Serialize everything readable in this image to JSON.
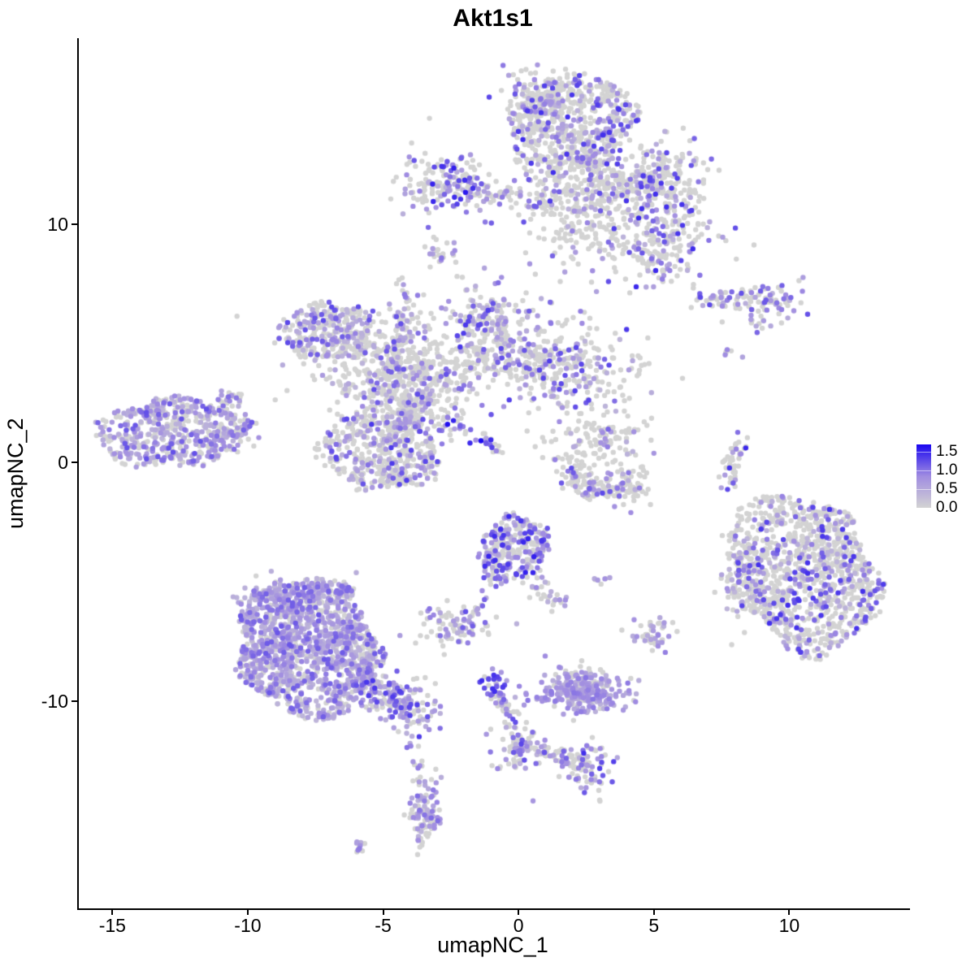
{
  "title": "Akt1s1",
  "chart_data": {
    "type": "scatter",
    "title": "Akt1s1",
    "xlabel": "umapNC_1",
    "ylabel": "umapNC_2",
    "xlim": [
      -16.3,
      14.4
    ],
    "ylim": [
      -18.7,
      17.8
    ],
    "x_ticks": [
      {
        "label": "-15",
        "value": -15
      },
      {
        "label": "-10",
        "value": -10
      },
      {
        "label": "-5",
        "value": -5
      },
      {
        "label": "0",
        "value": 0
      },
      {
        "label": "5",
        "value": 5
      },
      {
        "label": "10",
        "value": 10
      }
    ],
    "y_ticks": [
      {
        "label": "-10",
        "value": -10
      },
      {
        "label": "0",
        "value": 0
      },
      {
        "label": "10",
        "value": 10
      }
    ],
    "grid": false,
    "point_radius": 3.2,
    "color_scale": {
      "low": "#d3d3d3",
      "mid": "#a08ce1",
      "high": "#1a07f0",
      "vmax": 1.7
    },
    "legend": {
      "position": "right",
      "ticks": [
        {
          "label": "1.5",
          "value": 1.5
        },
        {
          "label": "1.0",
          "value": 1.0
        },
        {
          "label": "0.5",
          "value": 0.5
        },
        {
          "label": "0.0",
          "value": 0.0
        }
      ]
    },
    "clusters": [
      {
        "cluster": "top-center-main",
        "shape": "disc",
        "x": 1.9,
        "y": 14.15,
        "sx": 2.3,
        "sy": 2.0,
        "n": 600,
        "frac": 0.3,
        "vmin": 0.4,
        "vmax": 1.5,
        "vexp": 1.6
      },
      {
        "cluster": "top-left-bump",
        "shape": "blob",
        "x": 0.55,
        "y": 15.4,
        "sx": 0.65,
        "sy": 0.55,
        "n": 110,
        "frac": 0.3,
        "vmin": 0.4,
        "vmax": 1.4,
        "vexp": 1.6
      },
      {
        "cluster": "top-neck",
        "shape": "blob",
        "x": 1.85,
        "y": 10.8,
        "sx": 0.85,
        "sy": 1.15,
        "n": 230,
        "frac": 0.22,
        "vmin": 0.4,
        "vmax": 1.4,
        "vexp": 1.6
      },
      {
        "cluster": "top-right-arm",
        "shape": "strand",
        "pts": [
          [
            2.3,
            11.95
          ],
          [
            4.0,
            11.7
          ],
          [
            6.05,
            11.35
          ]
        ],
        "w": 0.5,
        "n": 210,
        "frac": 0.28,
        "vmin": 0.4,
        "vmax": 1.5,
        "vexp": 1.6
      },
      {
        "cluster": "top-right-wedge",
        "shape": "blob",
        "x": 5.3,
        "y": 12.55,
        "sx": 0.8,
        "sy": 0.65,
        "n": 100,
        "frac": 0.3,
        "vmin": 0.4,
        "vmax": 1.4,
        "vexp": 1.6
      },
      {
        "cluster": "top-lower-lobe",
        "shape": "blob",
        "x": 4.85,
        "y": 9.5,
        "sx": 1.15,
        "sy": 1.0,
        "n": 250,
        "frac": 0.3,
        "vmin": 0.4,
        "vmax": 1.5,
        "vexp": 1.6
      },
      {
        "cluster": "top-lobe-tail",
        "shape": "strand",
        "pts": [
          [
            4.9,
            8.7
          ],
          [
            5.1,
            7.95
          ]
        ],
        "w": 0.28,
        "n": 28,
        "frac": 0.3,
        "vmin": 0.4,
        "vmax": 1.2,
        "vexp": 1.6
      },
      {
        "cluster": "left-arm",
        "shape": "blob",
        "x": -2.8,
        "y": 11.6,
        "sx": 0.85,
        "sy": 0.7,
        "n": 175,
        "frac": 0.45,
        "vmin": 0.4,
        "vmax": 1.6,
        "vexp": 1.2
      },
      {
        "cluster": "left-arm-bridge",
        "shape": "strand",
        "pts": [
          [
            -1.5,
            11.4
          ],
          [
            0.3,
            11.15
          ],
          [
            1.15,
            10.95
          ]
        ],
        "w": 0.22,
        "n": 55,
        "frac": 0.5,
        "vmin": 0.4,
        "vmax": 1.4,
        "vexp": 1.4
      },
      {
        "cluster": "tiny-upper",
        "shape": "blob",
        "x": -2.95,
        "y": 8.75,
        "sx": 0.38,
        "sy": 0.35,
        "n": 22,
        "frac": 0.35,
        "vmin": 0.5,
        "vmax": 1.1,
        "vexp": 1.4
      },
      {
        "cluster": "right-streak-a",
        "shape": "strand",
        "pts": [
          [
            6.5,
            6.92
          ],
          [
            8.3,
            6.78
          ]
        ],
        "w": 0.2,
        "n": 42,
        "frac": 0.45,
        "vmin": 0.4,
        "vmax": 1.3,
        "vexp": 1.5
      },
      {
        "cluster": "right-streak-b",
        "shape": "blob",
        "x": 9.2,
        "y": 6.8,
        "sx": 0.75,
        "sy": 0.4,
        "n": 66,
        "frac": 0.4,
        "vmin": 0.4,
        "vmax": 1.3,
        "vexp": 1.5
      },
      {
        "cluster": "right-streak-c",
        "shape": "strand",
        "pts": [
          [
            8.5,
            6.05
          ],
          [
            9.12,
            5.6
          ]
        ],
        "w": 0.13,
        "n": 10,
        "frac": 0.5,
        "vmin": 0.5,
        "vmax": 1.2,
        "vexp": 1.4
      },
      {
        "cluster": "right-trio",
        "shape": "blob",
        "x": 7.75,
        "y": 4.72,
        "sx": 0.2,
        "sy": 0.17,
        "n": 6,
        "frac": 0.3,
        "vmin": 0.5,
        "vmax": 1.0,
        "vexp": 1.5
      },
      {
        "cluster": "mid-upper-left",
        "shape": "disc",
        "x": -7.1,
        "y": 5.5,
        "sx": 1.5,
        "sy": 1.4,
        "n": 280,
        "frac": 0.38,
        "vmin": 0.35,
        "vmax": 1.3,
        "vexp": 1.6
      },
      {
        "cluster": "mid-bridge",
        "shape": "blob",
        "x": -5.1,
        "y": 4.2,
        "sx": 1.2,
        "sy": 1.0,
        "n": 270,
        "frac": 0.22,
        "vmin": 0.35,
        "vmax": 1.2,
        "vexp": 1.7
      },
      {
        "cluster": "mid-vertical-arm",
        "shape": "strand",
        "pts": [
          [
            -4.25,
            6.6
          ],
          [
            -4.4,
            5.3
          ],
          [
            -4.6,
            4.4
          ]
        ],
        "w": 0.24,
        "n": 60,
        "frac": 0.35,
        "vmin": 0.4,
        "vmax": 1.3,
        "vexp": 1.6
      },
      {
        "cluster": "mid-central",
        "shape": "blob",
        "x": -4.0,
        "y": 3.1,
        "sx": 1.0,
        "sy": 1.0,
        "n": 240,
        "frac": 0.28,
        "vmin": 0.35,
        "vmax": 1.3,
        "vexp": 1.6
      },
      {
        "cluster": "mid-dense-top",
        "shape": "blob",
        "x": -1.2,
        "y": 6.1,
        "sx": 0.8,
        "sy": 0.72,
        "n": 155,
        "frac": 0.5,
        "vmin": 0.4,
        "vmax": 1.4,
        "vexp": 1.5
      },
      {
        "cluster": "mid-arm",
        "shape": "blob",
        "x": -1.2,
        "y": 4.3,
        "sx": 1.4,
        "sy": 0.62,
        "n": 200,
        "frac": 0.28,
        "vmin": 0.35,
        "vmax": 1.3,
        "vexp": 1.6
      },
      {
        "cluster": "mid-right-lobe",
        "shape": "blob",
        "x": 1.6,
        "y": 4.1,
        "sx": 1.3,
        "sy": 0.95,
        "n": 275,
        "frac": 0.33,
        "vmin": 0.35,
        "vmax": 1.4,
        "vexp": 1.6
      },
      {
        "cluster": "mid-lower-round",
        "shape": "disc",
        "x": -5.2,
        "y": 0.45,
        "sx": 2.0,
        "sy": 1.75,
        "n": 430,
        "frac": 0.33,
        "vmin": 0.35,
        "vmax": 1.4,
        "vexp": 1.7
      },
      {
        "cluster": "mid-connect",
        "shape": "blob",
        "x": -4.3,
        "y": 1.9,
        "sx": 0.8,
        "sy": 0.7,
        "n": 120,
        "frac": 0.3,
        "vmin": 0.35,
        "vmax": 1.2,
        "vexp": 1.7
      },
      {
        "cluster": "mid-diag-streak",
        "shape": "strand",
        "pts": [
          [
            -2.9,
            2.0
          ],
          [
            -1.7,
            1.1
          ],
          [
            -0.6,
            0.42
          ]
        ],
        "w": 0.16,
        "n": 38,
        "frac": 0.55,
        "vmin": 0.5,
        "vmax": 1.7,
        "vexp": 1.0
      },
      {
        "cluster": "stray-dot-left",
        "shape": "blob",
        "x": -10.45,
        "y": 6.1,
        "sx": 0.04,
        "sy": 0.04,
        "n": 1,
        "frac": 0,
        "vmin": 0,
        "vmax": 0,
        "vexp": 1
      },
      {
        "cluster": "mid-arm-upper-dots",
        "shape": "strand",
        "pts": [
          [
            -4.45,
            7.7
          ],
          [
            -4.25,
            6.9
          ]
        ],
        "w": 0.1,
        "n": 8,
        "frac": 0.4,
        "vmin": 0.5,
        "vmax": 1.0,
        "vexp": 1.4
      },
      {
        "cluster": "far-left",
        "shape": "disc",
        "x": -12.9,
        "y": 1.25,
        "sx": 2.55,
        "sy": 1.55,
        "n": 520,
        "frac": 0.55,
        "vmin": 0.35,
        "vmax": 1.25,
        "vexp": 1.7
      },
      {
        "cluster": "far-left-arm",
        "shape": "strand",
        "pts": [
          [
            -11.3,
            2.3
          ],
          [
            -10.35,
            2.85
          ]
        ],
        "w": 0.18,
        "n": 28,
        "frac": 0.5,
        "vmin": 0.4,
        "vmax": 1.1,
        "vexp": 1.6
      },
      {
        "cluster": "far-left-tip",
        "shape": "blob",
        "x": -10.7,
        "y": 1.05,
        "sx": 0.5,
        "sy": 0.45,
        "n": 65,
        "frac": 0.5,
        "vmin": 0.4,
        "vmax": 1.1,
        "vexp": 1.6
      },
      {
        "cluster": "crescent-top",
        "shape": "blob",
        "x": 2.8,
        "y": 0.8,
        "sx": 0.85,
        "sy": 0.78,
        "n": 130,
        "frac": 0.12,
        "vmin": 0.4,
        "vmax": 1.2,
        "vexp": 1.6
      },
      {
        "cluster": "crescent-top-streak",
        "shape": "strand",
        "pts": [
          [
            3.0,
            1.35
          ],
          [
            3.35,
            0.72
          ]
        ],
        "w": 0.13,
        "n": 12,
        "frac": 0.75,
        "vmin": 0.5,
        "vmax": 1.1,
        "vexp": 1.4
      },
      {
        "cluster": "crescent",
        "shape": "strand",
        "pts": [
          [
            1.85,
            -0.3
          ],
          [
            2.45,
            -0.92
          ],
          [
            3.2,
            -1.22
          ],
          [
            3.95,
            -1.15
          ],
          [
            4.6,
            -0.68
          ]
        ],
        "w": 0.3,
        "n": 155,
        "frac": 0.13,
        "vmin": 0.4,
        "vmax": 1.3,
        "vexp": 1.5
      },
      {
        "cluster": "crescent-below-dot",
        "shape": "blob",
        "x": 4.1,
        "y": -2.1,
        "sx": 0.03,
        "sy": 0.03,
        "n": 1,
        "frac": 1,
        "vmin": 0.8,
        "vmax": 0.85,
        "vexp": 1
      },
      {
        "cluster": "right-thin-streak",
        "shape": "strand",
        "pts": [
          [
            8.05,
            1.1
          ],
          [
            7.85,
            0.0
          ],
          [
            7.72,
            -1.05
          ]
        ],
        "w": 0.16,
        "n": 44,
        "frac": 0.35,
        "vmin": 0.5,
        "vmax": 1.5,
        "vexp": 1.3
      },
      {
        "cluster": "right-sparse-below",
        "shape": "strand",
        "pts": [
          [
            7.9,
            -1.6
          ],
          [
            7.95,
            -3.6
          ]
        ],
        "w": 0.22,
        "n": 9,
        "frac": 0.1,
        "vmin": 0.4,
        "vmax": 0.8,
        "vexp": 1.5
      },
      {
        "cluster": "right-big",
        "shape": "disc",
        "x": 10.5,
        "y": -4.65,
        "sx": 2.85,
        "sy": 3.1,
        "n": 1100,
        "frac": 0.28,
        "vmin": 0.35,
        "vmax": 1.45,
        "vexp": 1.5
      },
      {
        "cluster": "right-big-west",
        "shape": "blob",
        "x": 8.05,
        "y": -4.9,
        "sx": 0.5,
        "sy": 0.85,
        "n": 70,
        "frac": 0.25,
        "vmin": 0.35,
        "vmax": 1.2,
        "vexp": 1.6
      },
      {
        "cluster": "center-blob",
        "shape": "disc",
        "x": -0.25,
        "y": -3.65,
        "sx": 1.35,
        "sy": 1.3,
        "n": 300,
        "frac": 0.5,
        "vmin": 0.4,
        "vmax": 1.55,
        "vexp": 1.5
      },
      {
        "cluster": "center-tail",
        "shape": "strand",
        "pts": [
          [
            0.5,
            -4.95
          ],
          [
            1.3,
            -5.9
          ]
        ],
        "w": 0.22,
        "n": 30,
        "frac": 0.45,
        "vmin": 0.4,
        "vmax": 1.3,
        "vexp": 1.5
      },
      {
        "cluster": "center-downleft",
        "shape": "strand",
        "pts": [
          [
            -0.95,
            -5.0
          ],
          [
            -1.8,
            -6.6
          ]
        ],
        "w": 0.13,
        "n": 18,
        "frac": 0.5,
        "vmin": 0.4,
        "vmax": 1.3,
        "vexp": 1.5
      },
      {
        "cluster": "center-tiny-right",
        "shape": "blob",
        "x": 2.95,
        "y": -4.9,
        "sx": 0.22,
        "sy": 0.13,
        "n": 7,
        "frac": 0.5,
        "vmin": 0.5,
        "vmax": 1.0,
        "vexp": 1.5
      },
      {
        "cluster": "small-pair",
        "shape": "blob",
        "x": -2.55,
        "y": -6.95,
        "sx": 0.68,
        "sy": 0.4,
        "n": 85,
        "frac": 0.45,
        "vmin": 0.4,
        "vmax": 1.2,
        "vexp": 1.5
      },
      {
        "cluster": "bottom-left-big",
        "shape": "disc",
        "x": -7.85,
        "y": -7.75,
        "sx": 2.9,
        "sy": 2.6,
        "n": 1400,
        "frac": 0.72,
        "vmin": 0.35,
        "vmax": 1.2,
        "vexp": 1.9
      },
      {
        "cluster": "bottom-left-top-bump",
        "shape": "blob",
        "x": -8.3,
        "y": -5.75,
        "sx": 0.95,
        "sy": 0.5,
        "n": 130,
        "frac": 0.7,
        "vmin": 0.35,
        "vmax": 1.1,
        "vexp": 1.9
      },
      {
        "cluster": "bottom-left-right-tail",
        "shape": "strand",
        "pts": [
          [
            -5.6,
            -9.3
          ],
          [
            -4.5,
            -9.95
          ],
          [
            -3.75,
            -10.55
          ]
        ],
        "w": 0.5,
        "n": 190,
        "frac": 0.68,
        "vmin": 0.4,
        "vmax": 1.4,
        "vexp": 1.6
      },
      {
        "cluster": "tail-down-strand",
        "shape": "strand",
        "pts": [
          [
            -4.2,
            -11.0
          ],
          [
            -3.8,
            -12.6
          ],
          [
            -3.72,
            -13.4
          ]
        ],
        "w": 0.15,
        "n": 15,
        "frac": 0.5,
        "vmin": 0.4,
        "vmax": 1.1,
        "vexp": 1.5
      },
      {
        "cluster": "tail-down-blob",
        "shape": "blob",
        "x": -3.5,
        "y": -14.6,
        "sx": 0.3,
        "sy": 0.95,
        "n": 100,
        "frac": 0.6,
        "vmin": 0.4,
        "vmax": 1.1,
        "vexp": 1.6
      },
      {
        "cluster": "tail-tiny-blob",
        "shape": "blob",
        "x": -6.0,
        "y": -16.1,
        "sx": 0.16,
        "sy": 0.11,
        "n": 10,
        "frac": 0.5,
        "vmin": 0.4,
        "vmax": 1.0,
        "vexp": 1.5
      },
      {
        "cluster": "bottom-center-knot",
        "shape": "blob",
        "x": -0.85,
        "y": -9.4,
        "sx": 0.27,
        "sy": 0.3,
        "n": 38,
        "frac": 0.75,
        "vmin": 0.6,
        "vmax": 1.5,
        "vexp": 1.2
      },
      {
        "cluster": "bottom-center-strand",
        "shape": "strand",
        "pts": [
          [
            -0.8,
            -9.8
          ],
          [
            -0.35,
            -10.8
          ],
          [
            0.0,
            -11.8
          ]
        ],
        "w": 0.15,
        "n": 40,
        "frac": 0.5,
        "vmin": 0.4,
        "vmax": 1.3,
        "vexp": 1.4
      },
      {
        "cluster": "bottom-center-mid",
        "shape": "blob",
        "x": -0.05,
        "y": -12.0,
        "sx": 0.42,
        "sy": 0.5,
        "n": 65,
        "frac": 0.55,
        "vmin": 0.4,
        "vmax": 1.3,
        "vexp": 1.5
      },
      {
        "cluster": "bottom-center-right-strand",
        "shape": "strand",
        "pts": [
          [
            0.35,
            -11.9
          ],
          [
            1.4,
            -12.2
          ],
          [
            2.0,
            -12.5
          ]
        ],
        "w": 0.15,
        "n": 40,
        "frac": 0.35,
        "vmin": 0.4,
        "vmax": 1.2,
        "vexp": 1.5
      },
      {
        "cluster": "bottom-center-end",
        "shape": "blob",
        "x": 2.35,
        "y": -12.7,
        "sx": 0.5,
        "sy": 0.55,
        "n": 85,
        "frac": 0.5,
        "vmin": 0.4,
        "vmax": 1.5,
        "vexp": 1.4
      },
      {
        "cluster": "bottom-center-single",
        "shape": "blob",
        "x": 0.5,
        "y": -14.2,
        "sx": 0.03,
        "sy": 0.03,
        "n": 1,
        "frac": 1,
        "vmin": 0.7,
        "vmax": 0.75,
        "vexp": 1
      },
      {
        "cluster": "dense-flat",
        "shape": "blob",
        "x": 2.3,
        "y": -9.65,
        "sx": 0.8,
        "sy": 0.42,
        "n": 270,
        "frac": 0.85,
        "vmin": 0.4,
        "vmax": 1.0,
        "vexp": 1.6
      },
      {
        "cluster": "dense-flat-above",
        "shape": "blob",
        "x": 2.2,
        "y": -8.95,
        "sx": 0.65,
        "sy": 0.33,
        "n": 28,
        "frac": 0.4,
        "vmin": 0.4,
        "vmax": 1.0,
        "vexp": 1.5
      },
      {
        "cluster": "small-right-blob",
        "shape": "blob",
        "x": 4.88,
        "y": -7.2,
        "sx": 0.36,
        "sy": 0.4,
        "n": 45,
        "frac": 0.5,
        "vmin": 0.4,
        "vmax": 1.1,
        "vexp": 1.5
      }
    ]
  }
}
